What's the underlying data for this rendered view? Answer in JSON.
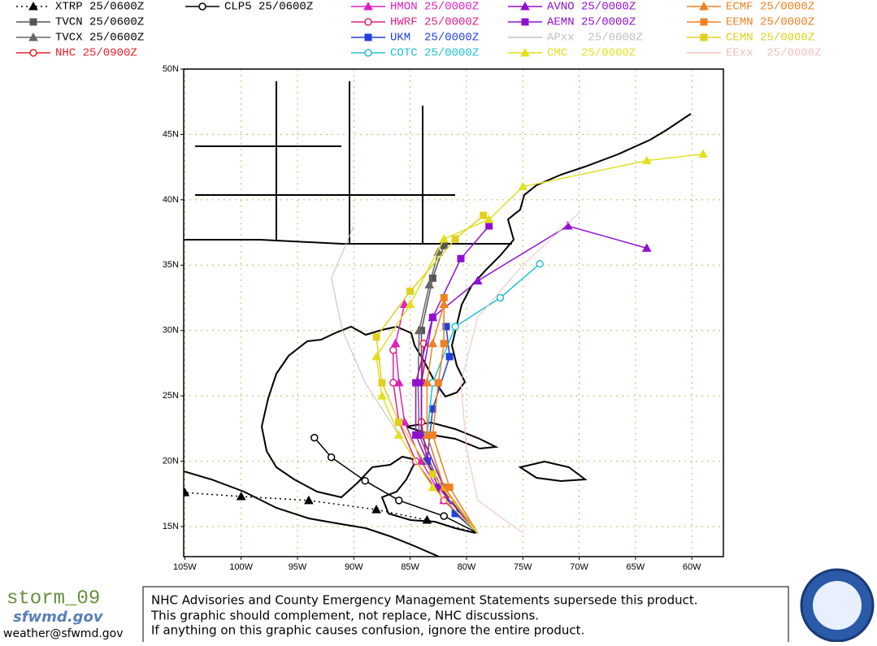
{
  "map": {
    "xlim": [
      -105.1,
      -57.2
    ],
    "ylim": [
      12.7,
      50
    ],
    "xticks": [
      {
        "value": -105,
        "label": "105W"
      },
      {
        "value": -100,
        "label": "100W"
      },
      {
        "value": -95,
        "label": "95W"
      },
      {
        "value": -90,
        "label": "90W"
      },
      {
        "value": -85,
        "label": "85W"
      },
      {
        "value": -80,
        "label": "80W"
      },
      {
        "value": -75,
        "label": "75W"
      },
      {
        "value": -70,
        "label": "70W"
      },
      {
        "value": -65,
        "label": "65W"
      },
      {
        "value": -60,
        "label": "60W"
      }
    ],
    "yticks": [
      {
        "value": 15,
        "label": "15N"
      },
      {
        "value": 20,
        "label": "20N"
      },
      {
        "value": 25,
        "label": "25N"
      },
      {
        "value": 30,
        "label": "30N"
      },
      {
        "value": 35,
        "label": "35N"
      },
      {
        "value": 40,
        "label": "40N"
      },
      {
        "value": 45,
        "label": "45N"
      },
      {
        "value": 50,
        "label": "50N"
      }
    ],
    "grid": true,
    "tracks": [
      {
        "name": "XTRP 25/0600Z",
        "color": "#000000",
        "marker": "triangle",
        "dotted": true,
        "lon": [
          -79,
          -83.5,
          -88,
          -94,
          -100,
          -105
        ],
        "lat": [
          14.5,
          15.5,
          16.3,
          17,
          17.3,
          17.6
        ]
      },
      {
        "name": "TVCN 25/0600Z",
        "color": "#555555",
        "marker": "square",
        "lon": [
          -79,
          -82,
          -84,
          -84,
          -84,
          -83,
          -82
        ],
        "lat": [
          14.5,
          18,
          22,
          26,
          30,
          34,
          36.5
        ]
      },
      {
        "name": "TVCX 25/0600Z",
        "color": "#666666",
        "marker": "triangle",
        "lon": [
          -79,
          -82.3,
          -84.2,
          -84.3,
          -84.2,
          -83.3,
          -82.5
        ],
        "lat": [
          14.5,
          18,
          22,
          26,
          30,
          33.5,
          36
        ]
      },
      {
        "name": "NHC 25/0900Z",
        "color": "#e8202a",
        "marker": "circle",
        "lon": [
          -79,
          -81.5,
          -83.5,
          -84,
          -84,
          -83.8
        ],
        "lat": [
          14.5,
          17,
          20,
          23,
          26,
          29
        ]
      },
      {
        "name": "CLP5 25/0600Z",
        "color": "#000000",
        "marker": "circle",
        "lon": [
          -79,
          -82,
          -86,
          -89,
          -92,
          -93.5
        ],
        "lat": [
          14.5,
          15.8,
          17,
          18.5,
          20.3,
          21.8
        ]
      },
      {
        "name": "HMON 25/0000Z",
        "color": "#e020c0",
        "marker": "triangle",
        "lon": [
          -79,
          -82,
          -84,
          -85.5,
          -86,
          -86.3,
          -85.5
        ],
        "lat": [
          14.5,
          17,
          20,
          23,
          26,
          29,
          32
        ]
      },
      {
        "name": "HWRF 25/0000Z",
        "color": "#e0208a",
        "marker": "circle",
        "lon": [
          -79,
          -82,
          -84.5,
          -86,
          -86.5,
          -86.5
        ],
        "lat": [
          14.5,
          17,
          20,
          23,
          26,
          28.5
        ]
      },
      {
        "name": "UKM  25/0000Z",
        "color": "#2040e0",
        "marker": "square",
        "lon": [
          -79,
          -81,
          -83.5,
          -83,
          -81.5,
          -81.8
        ],
        "lat": [
          14.5,
          16,
          20,
          24,
          28,
          30.3
        ]
      },
      {
        "name": "COTC 25/0000Z",
        "color": "#20c0d0",
        "marker": "circle",
        "lon": [
          -79,
          -82,
          -83.5,
          -83,
          -81,
          -77,
          -73.5
        ],
        "lat": [
          14.5,
          18,
          22,
          26,
          30.3,
          32.5,
          35.1
        ]
      },
      {
        "name": "AVNO 25/0000Z",
        "color": "#9010d0",
        "marker": "triangle",
        "lon": [
          -79,
          -82,
          -84,
          -84,
          -83,
          -79,
          -71,
          -64
        ],
        "lat": [
          14.5,
          18,
          22,
          26,
          31,
          33.8,
          38,
          36.3
        ]
      },
      {
        "name": "AEMN 25/0000Z",
        "color": "#9010d0",
        "marker": "square",
        "lon": [
          -79,
          -82.5,
          -84.5,
          -84.5,
          -83,
          -80.5,
          -78
        ],
        "lat": [
          14.5,
          18,
          22,
          26,
          31,
          35.5,
          38
        ]
      },
      {
        "name": "APxx  25/0000Z",
        "color": "#c0c0c0",
        "marker": "none",
        "lon": [
          -79,
          -83,
          -86,
          -89,
          -91,
          -92,
          -90
        ],
        "lat": [
          14.5,
          18,
          22,
          26,
          30,
          34,
          38
        ]
      },
      {
        "name": "CMC  25/0000Z",
        "color": "#e0e020",
        "marker": "triangle",
        "lon": [
          -79,
          -83,
          -86,
          -87.5,
          -88,
          -85,
          -82,
          -78,
          -75,
          -64,
          -59
        ],
        "lat": [
          14.5,
          18,
          22,
          25,
          28,
          32,
          37,
          38.5,
          41,
          43,
          43.5
        ]
      },
      {
        "name": "ECMF 25/0000Z",
        "color": "#f08020",
        "marker": "triangle",
        "lon": [
          -79,
          -82,
          -83.5,
          -83.5,
          -83,
          -82
        ],
        "lat": [
          14.5,
          18,
          22,
          26,
          29,
          32
        ]
      },
      {
        "name": "EEMN 25/0000Z",
        "color": "#f08020",
        "marker": "square",
        "lon": [
          -79,
          -81.5,
          -83,
          -82.5,
          -82,
          -82
        ],
        "lat": [
          14.5,
          18,
          22,
          26,
          29,
          32.5
        ]
      },
      {
        "name": "EExx  25/0000Z",
        "color": "#f0c0c0",
        "marker": "none",
        "lon": [
          -75,
          -79,
          -80,
          -80.5,
          -79,
          -75,
          -70
        ],
        "lat": [
          14.5,
          17,
          21,
          26,
          31,
          35,
          39
        ]
      },
      {
        "name": "CEMN 25/0000Z",
        "color": "#e0d020",
        "marker": "square",
        "lon": [
          -79,
          -83,
          -86,
          -87.5,
          -88,
          -85,
          -81,
          -78.5
        ],
        "lat": [
          14.5,
          19,
          23,
          26,
          29.5,
          33,
          37,
          38.8
        ]
      }
    ]
  },
  "footer": {
    "storm": "storm_09",
    "site": "sfwmd.gov",
    "email": "weather@sfwmd.gov",
    "lines": [
      "NHC Advisories and County Emergency Management Statements supersede this product.",
      "This graphic should complement, not replace, NHC discussions.",
      "If anything on this graphic causes confusion, ignore the entire product."
    ]
  }
}
